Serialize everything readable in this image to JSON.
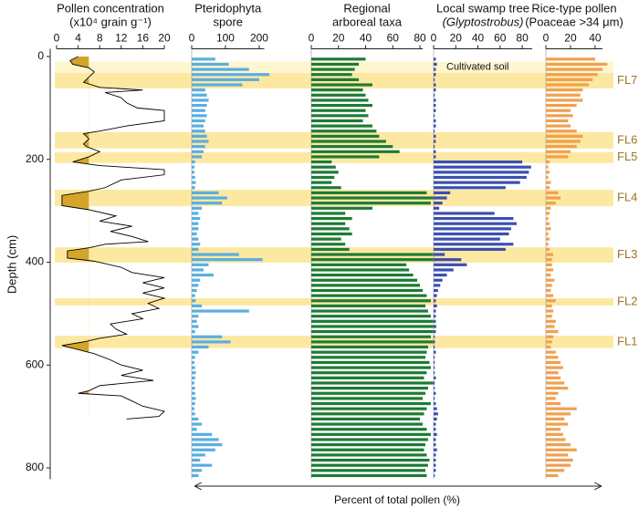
{
  "chart_data": {
    "type": "pollen-diagram",
    "ylabel": "Depth (cm)",
    "xlabel": "Percent of total pollen (%)",
    "ylim": [
      -15,
      822
    ],
    "yticks": [
      0,
      200,
      400,
      600,
      800
    ],
    "depths": [
      5,
      15,
      25,
      35,
      45,
      55,
      65,
      75,
      85,
      95,
      105,
      115,
      125,
      135,
      145,
      155,
      165,
      175,
      185,
      195,
      205,
      215,
      225,
      235,
      245,
      255,
      265,
      275,
      285,
      295,
      305,
      315,
      325,
      335,
      345,
      355,
      365,
      375,
      385,
      395,
      405,
      415,
      425,
      435,
      445,
      455,
      465,
      475,
      485,
      495,
      505,
      515,
      525,
      535,
      545,
      555,
      565,
      575,
      585,
      595,
      605,
      615,
      625,
      635,
      645,
      655,
      665,
      675,
      685,
      695,
      705,
      715,
      725,
      735,
      745,
      755,
      765,
      775,
      785,
      795,
      805,
      815
    ],
    "annotation": {
      "text": "Cultivated soil",
      "range": [
        10,
        32
      ]
    },
    "zones": [
      {
        "label": "FL7",
        "range": [
          32,
          62
        ]
      },
      {
        "label": "FL6",
        "range": [
          147,
          179
        ]
      },
      {
        "label": "FL5",
        "range": [
          186,
          207
        ]
      },
      {
        "label": "FL4",
        "range": [
          259,
          291
        ]
      },
      {
        "label": "FL3",
        "range": [
          371,
          401
        ]
      },
      {
        "label": "FL2",
        "range": [
          470,
          484
        ]
      },
      {
        "label": "FL1",
        "range": [
          543,
          567
        ]
      }
    ],
    "panels": [
      {
        "type": "line",
        "title": [
          "Pollen concentration",
          "(x10⁴ grain g⁻¹)"
        ],
        "xlim": [
          0,
          20
        ],
        "xticks": [
          0,
          4,
          8,
          12,
          16,
          20
        ],
        "color": "#000000",
        "fill_below": 6,
        "fill_color": "#d4a52a",
        "depths": [
          0,
          8,
          15,
          22,
          30,
          40,
          50,
          60,
          65,
          70,
          80,
          90,
          100,
          105,
          125,
          135,
          145,
          150,
          160,
          170,
          175,
          185,
          195,
          205,
          212,
          220,
          230,
          240,
          255,
          262,
          270,
          290,
          298,
          310,
          320,
          330,
          340,
          350,
          360,
          365,
          372,
          378,
          392,
          398,
          410,
          420,
          430,
          440,
          450,
          460,
          470,
          480,
          490,
          500,
          510,
          520,
          530,
          540,
          548,
          555,
          562,
          570,
          578,
          590,
          600,
          610,
          620,
          630,
          640,
          650,
          655,
          660,
          670,
          680,
          690,
          700,
          705
        ],
        "values": [
          4,
          2.5,
          3,
          6,
          7,
          6,
          5,
          8,
          16,
          9,
          12,
          13,
          15,
          20,
          20,
          13,
          8,
          5,
          6,
          5,
          5.5,
          8,
          6,
          3,
          8,
          20,
          20,
          12,
          9,
          6,
          1,
          1,
          6,
          11,
          8,
          14,
          10,
          14,
          17,
          9,
          6,
          2,
          2,
          7,
          12,
          14,
          20,
          16,
          20,
          16,
          20,
          17,
          19,
          14,
          16,
          10,
          11,
          13,
          8,
          5,
          1,
          4,
          7,
          10,
          12,
          16,
          12,
          18,
          8,
          6,
          4,
          12,
          14,
          16,
          20,
          19,
          13
        ]
      },
      {
        "type": "bar",
        "title": [
          "Pteridophyta",
          "spore"
        ],
        "xlim": [
          0,
          215
        ],
        "xticks": [
          0,
          100,
          200
        ],
        "color": "#5aaee0",
        "values": [
          70,
          110,
          170,
          230,
          200,
          150,
          40,
          45,
          50,
          45,
          40,
          45,
          40,
          35,
          40,
          45,
          50,
          40,
          35,
          30,
          10,
          8,
          8,
          10,
          12,
          10,
          80,
          105,
          90,
          30,
          20,
          25,
          20,
          20,
          15,
          20,
          25,
          20,
          140,
          210,
          50,
          35,
          65,
          25,
          20,
          15,
          10,
          12,
          30,
          170,
          20,
          15,
          20,
          10,
          90,
          115,
          50,
          20,
          10,
          8,
          10,
          12,
          10,
          8,
          10,
          10,
          12,
          10,
          8,
          10,
          20,
          30,
          15,
          60,
          80,
          90,
          70,
          40,
          25,
          60,
          30,
          20
        ]
      },
      {
        "type": "bar",
        "title": [
          "Regional",
          "arboreal taxa"
        ],
        "xlim": [
          0,
          82
        ],
        "xticks": [
          0,
          20,
          40,
          60,
          80
        ],
        "color": "#1e7b34",
        "values": [
          40,
          35,
          32,
          30,
          35,
          45,
          38,
          40,
          42,
          45,
          40,
          42,
          38,
          45,
          48,
          50,
          55,
          60,
          65,
          50,
          15,
          18,
          20,
          17,
          15,
          22,
          85,
          90,
          88,
          45,
          25,
          30,
          25,
          28,
          30,
          22,
          25,
          28,
          90,
          92,
          70,
          72,
          75,
          78,
          80,
          82,
          85,
          88,
          84,
          86,
          88,
          90,
          92,
          90,
          88,
          91,
          86,
          85,
          84,
          87,
          88,
          85,
          83,
          90,
          86,
          84,
          82,
          88,
          85,
          83,
          80,
          82,
          85,
          88,
          86,
          84,
          83,
          85,
          87,
          86,
          84,
          85
        ]
      },
      {
        "type": "bar",
        "title": [
          "Local swamp tree",
          "(Glyptostrobus)"
        ],
        "xlim": [
          0,
          89
        ],
        "xticks": [
          0,
          20,
          40,
          60,
          80
        ],
        "color": "#3c4fb0",
        "values": [
          2,
          3,
          2,
          2,
          1,
          2,
          2,
          1,
          2,
          2,
          2,
          1,
          2,
          2,
          1,
          2,
          2,
          1,
          2,
          2,
          80,
          88,
          86,
          84,
          78,
          65,
          15,
          12,
          8,
          5,
          55,
          72,
          75,
          70,
          68,
          60,
          72,
          65,
          10,
          25,
          30,
          18,
          12,
          8,
          6,
          4,
          3,
          2,
          3,
          2,
          2,
          2,
          1,
          2,
          1,
          1,
          1,
          2,
          1,
          1,
          1,
          1,
          2,
          1,
          1,
          2,
          1,
          2,
          3,
          4,
          3,
          2,
          2,
          3,
          2,
          2,
          3,
          2,
          2,
          2,
          2,
          1
        ]
      },
      {
        "type": "bar",
        "title": [
          "Rice-type pollen",
          "(Poaceae >34 μm)"
        ],
        "xlim": [
          0,
          46
        ],
        "xticks": [
          0,
          20,
          40
        ],
        "color": "#f0a050",
        "values": [
          40,
          50,
          46,
          42,
          38,
          35,
          30,
          28,
          30,
          25,
          20,
          22,
          18,
          20,
          25,
          30,
          28,
          25,
          20,
          18,
          3,
          2,
          3,
          2,
          4,
          3,
          10,
          12,
          8,
          4,
          3,
          2,
          3,
          4,
          2,
          3,
          2,
          3,
          6,
          5,
          5,
          6,
          4,
          7,
          5,
          4,
          6,
          8,
          5,
          6,
          5,
          8,
          7,
          10,
          6,
          5,
          4,
          8,
          10,
          12,
          14,
          10,
          12,
          15,
          18,
          10,
          8,
          12,
          25,
          20,
          15,
          18,
          12,
          14,
          16,
          20,
          25,
          18,
          22,
          20,
          15,
          10
        ]
      }
    ]
  }
}
